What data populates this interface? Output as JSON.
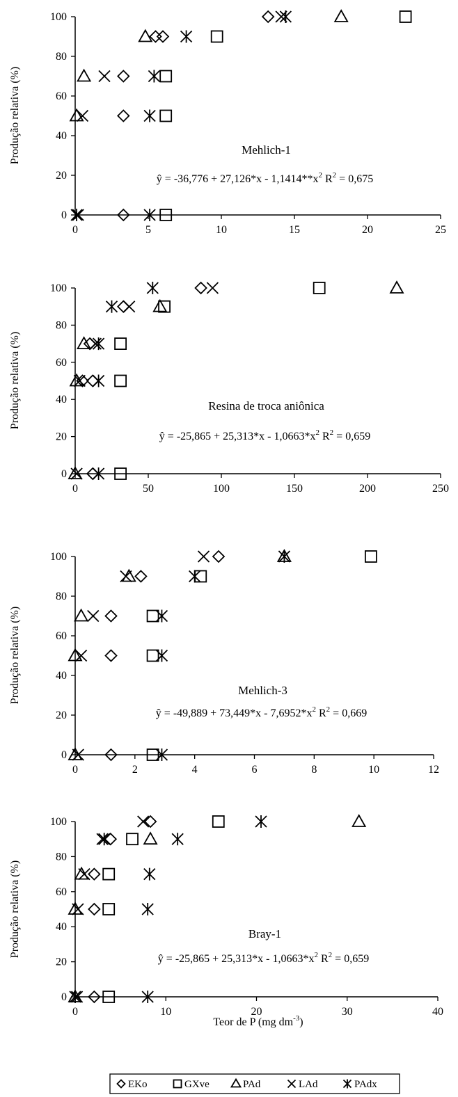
{
  "markers": {
    "EKo": "diamond",
    "GXve": "square",
    "PAd": "triangle",
    "LAd": "x",
    "PAdx": "star"
  },
  "xlabel": {
    "main": "Teor de P (mg dm",
    "sup": "-3",
    "close": ")"
  },
  "legend": [
    "EKo",
    "GXve",
    "PAd",
    "LAd",
    "PAdx"
  ],
  "chart_data": [
    {
      "type": "scatter",
      "title": "Mehlich-1",
      "ylabel": "Produção relativa (%)",
      "equation": {
        "main": "ŷ = -36,776 + 27,126*x - 1,1414**x",
        "sup1": "2",
        "r": "  R",
        "sup2": "2",
        "rval": " = 0,675"
      },
      "xlim": [
        0,
        25
      ],
      "ylim": [
        0,
        100
      ],
      "xticks": [
        0,
        5,
        10,
        15,
        20,
        25
      ],
      "yticks": [
        0,
        20,
        40,
        60,
        80,
        100
      ],
      "series": [
        {
          "name": "EKo",
          "x": [
            3.3,
            3.3,
            3.3,
            5.5,
            6.0,
            13.2
          ],
          "y": [
            0,
            50,
            70,
            90,
            90,
            100
          ]
        },
        {
          "name": "GXve",
          "x": [
            6.2,
            6.2,
            6.2,
            9.7,
            22.6
          ],
          "y": [
            0,
            50,
            70,
            90,
            100
          ]
        },
        {
          "name": "PAd",
          "x": [
            0.1,
            0.6,
            4.8,
            18.2
          ],
          "y": [
            50,
            70,
            90,
            100
          ]
        },
        {
          "name": "LAd",
          "x": [
            0.2,
            0.5,
            2.0,
            14.1
          ],
          "y": [
            0,
            50,
            70,
            100
          ]
        },
        {
          "name": "PAdx",
          "x": [
            0.1,
            5.1,
            5.1,
            5.4,
            7.6,
            14.4
          ],
          "y": [
            0,
            0,
            50,
            70,
            90,
            100
          ]
        }
      ]
    },
    {
      "type": "scatter",
      "title": "Resina de troca aniônica",
      "ylabel": "Produção relativa (%)",
      "equation": {
        "main": "ŷ = -25,865 + 25,313*x - 1,0663*x",
        "sup1": "2",
        "r": "  R",
        "sup2": "2",
        "rval": " = 0,659"
      },
      "xlim": [
        0,
        250
      ],
      "ylim": [
        0,
        100
      ],
      "xticks": [
        0,
        50,
        100,
        150,
        200,
        250
      ],
      "yticks": [
        0,
        20,
        40,
        60,
        80,
        100
      ],
      "series": [
        {
          "name": "EKo",
          "x": [
            12,
            5,
            12,
            10,
            33,
            86
          ],
          "y": [
            0,
            50,
            50,
            70,
            90,
            100
          ]
        },
        {
          "name": "GXve",
          "x": [
            31,
            31,
            31,
            61,
            167
          ],
          "y": [
            0,
            50,
            70,
            90,
            100
          ]
        },
        {
          "name": "PAd",
          "x": [
            0,
            1,
            6,
            58,
            220
          ],
          "y": [
            0,
            50,
            70,
            90,
            100
          ]
        },
        {
          "name": "LAd",
          "x": [
            1,
            3,
            14,
            37,
            94
          ],
          "y": [
            0,
            50,
            70,
            90,
            100
          ]
        },
        {
          "name": "PAdx",
          "x": [
            16,
            16,
            16,
            25,
            53
          ],
          "y": [
            0,
            50,
            70,
            90,
            100
          ]
        }
      ]
    },
    {
      "type": "scatter",
      "title": "Mehlich-3",
      "ylabel": "Produção relativa (%)",
      "equation": {
        "main": "ŷ = -49,889 + 73,449*x - 7,6952*x",
        "sup1": "2",
        "r": "  R",
        "sup2": "2",
        "rval": " = 0,669"
      },
      "xlim": [
        0,
        12
      ],
      "ylim": [
        0,
        100
      ],
      "xticks": [
        0,
        2,
        4,
        6,
        8,
        10,
        12
      ],
      "yticks": [
        0,
        20,
        40,
        60,
        80,
        100
      ],
      "series": [
        {
          "name": "EKo",
          "x": [
            1.2,
            1.2,
            1.2,
            2.2,
            4.8
          ],
          "y": [
            0,
            50,
            70,
            90,
            100
          ]
        },
        {
          "name": "GXve",
          "x": [
            2.6,
            2.6,
            2.6,
            4.2,
            9.9
          ],
          "y": [
            0,
            50,
            70,
            90,
            100
          ]
        },
        {
          "name": "PAd",
          "x": [
            0.0,
            0.0,
            0.2,
            1.8,
            7.0
          ],
          "y": [
            0,
            50,
            70,
            90,
            100
          ]
        },
        {
          "name": "LAd",
          "x": [
            0.1,
            0.2,
            0.6,
            1.7,
            4.3
          ],
          "y": [
            0,
            50,
            70,
            90,
            100
          ]
        },
        {
          "name": "PAdx",
          "x": [
            2.9,
            2.9,
            2.9,
            4.0,
            7.0
          ],
          "y": [
            0,
            50,
            70,
            90,
            100
          ]
        }
      ]
    },
    {
      "type": "scatter",
      "title": "Bray-1",
      "ylabel": "Produção relativa (%)",
      "equation": {
        "main": "ŷ = -25,865 + 25,313*x - 1,0663*x",
        "sup1": "2",
        "r": "  R",
        "sup2": "2",
        "rval": " = 0,659"
      },
      "xlim": [
        0,
        40
      ],
      "ylim": [
        0,
        100
      ],
      "xticks": [
        0,
        10,
        20,
        30,
        40
      ],
      "yticks": [
        0,
        20,
        40,
        60,
        80,
        100
      ],
      "series": [
        {
          "name": "EKo",
          "x": [
            2.1,
            2.1,
            2.1,
            3.9,
            8.3
          ],
          "y": [
            0,
            50,
            70,
            90,
            100
          ]
        },
        {
          "name": "GXve",
          "x": [
            3.7,
            3.7,
            3.7,
            6.3,
            15.8
          ],
          "y": [
            0,
            50,
            70,
            90,
            100
          ]
        },
        {
          "name": "PAd",
          "x": [
            0.0,
            0.0,
            0.7,
            8.3,
            31.3
          ],
          "y": [
            0,
            50,
            70,
            90,
            100
          ]
        },
        {
          "name": "LAd",
          "x": [
            0.2,
            0.3,
            1.0,
            3.0,
            7.5
          ],
          "y": [
            0,
            50,
            70,
            90,
            100
          ]
        },
        {
          "name": "PAdx",
          "x": [
            0.0,
            8.0,
            8.0,
            8.2,
            11.3,
            3.2,
            20.5
          ],
          "y": [
            0,
            0,
            50,
            70,
            90,
            90,
            100
          ]
        }
      ]
    }
  ]
}
